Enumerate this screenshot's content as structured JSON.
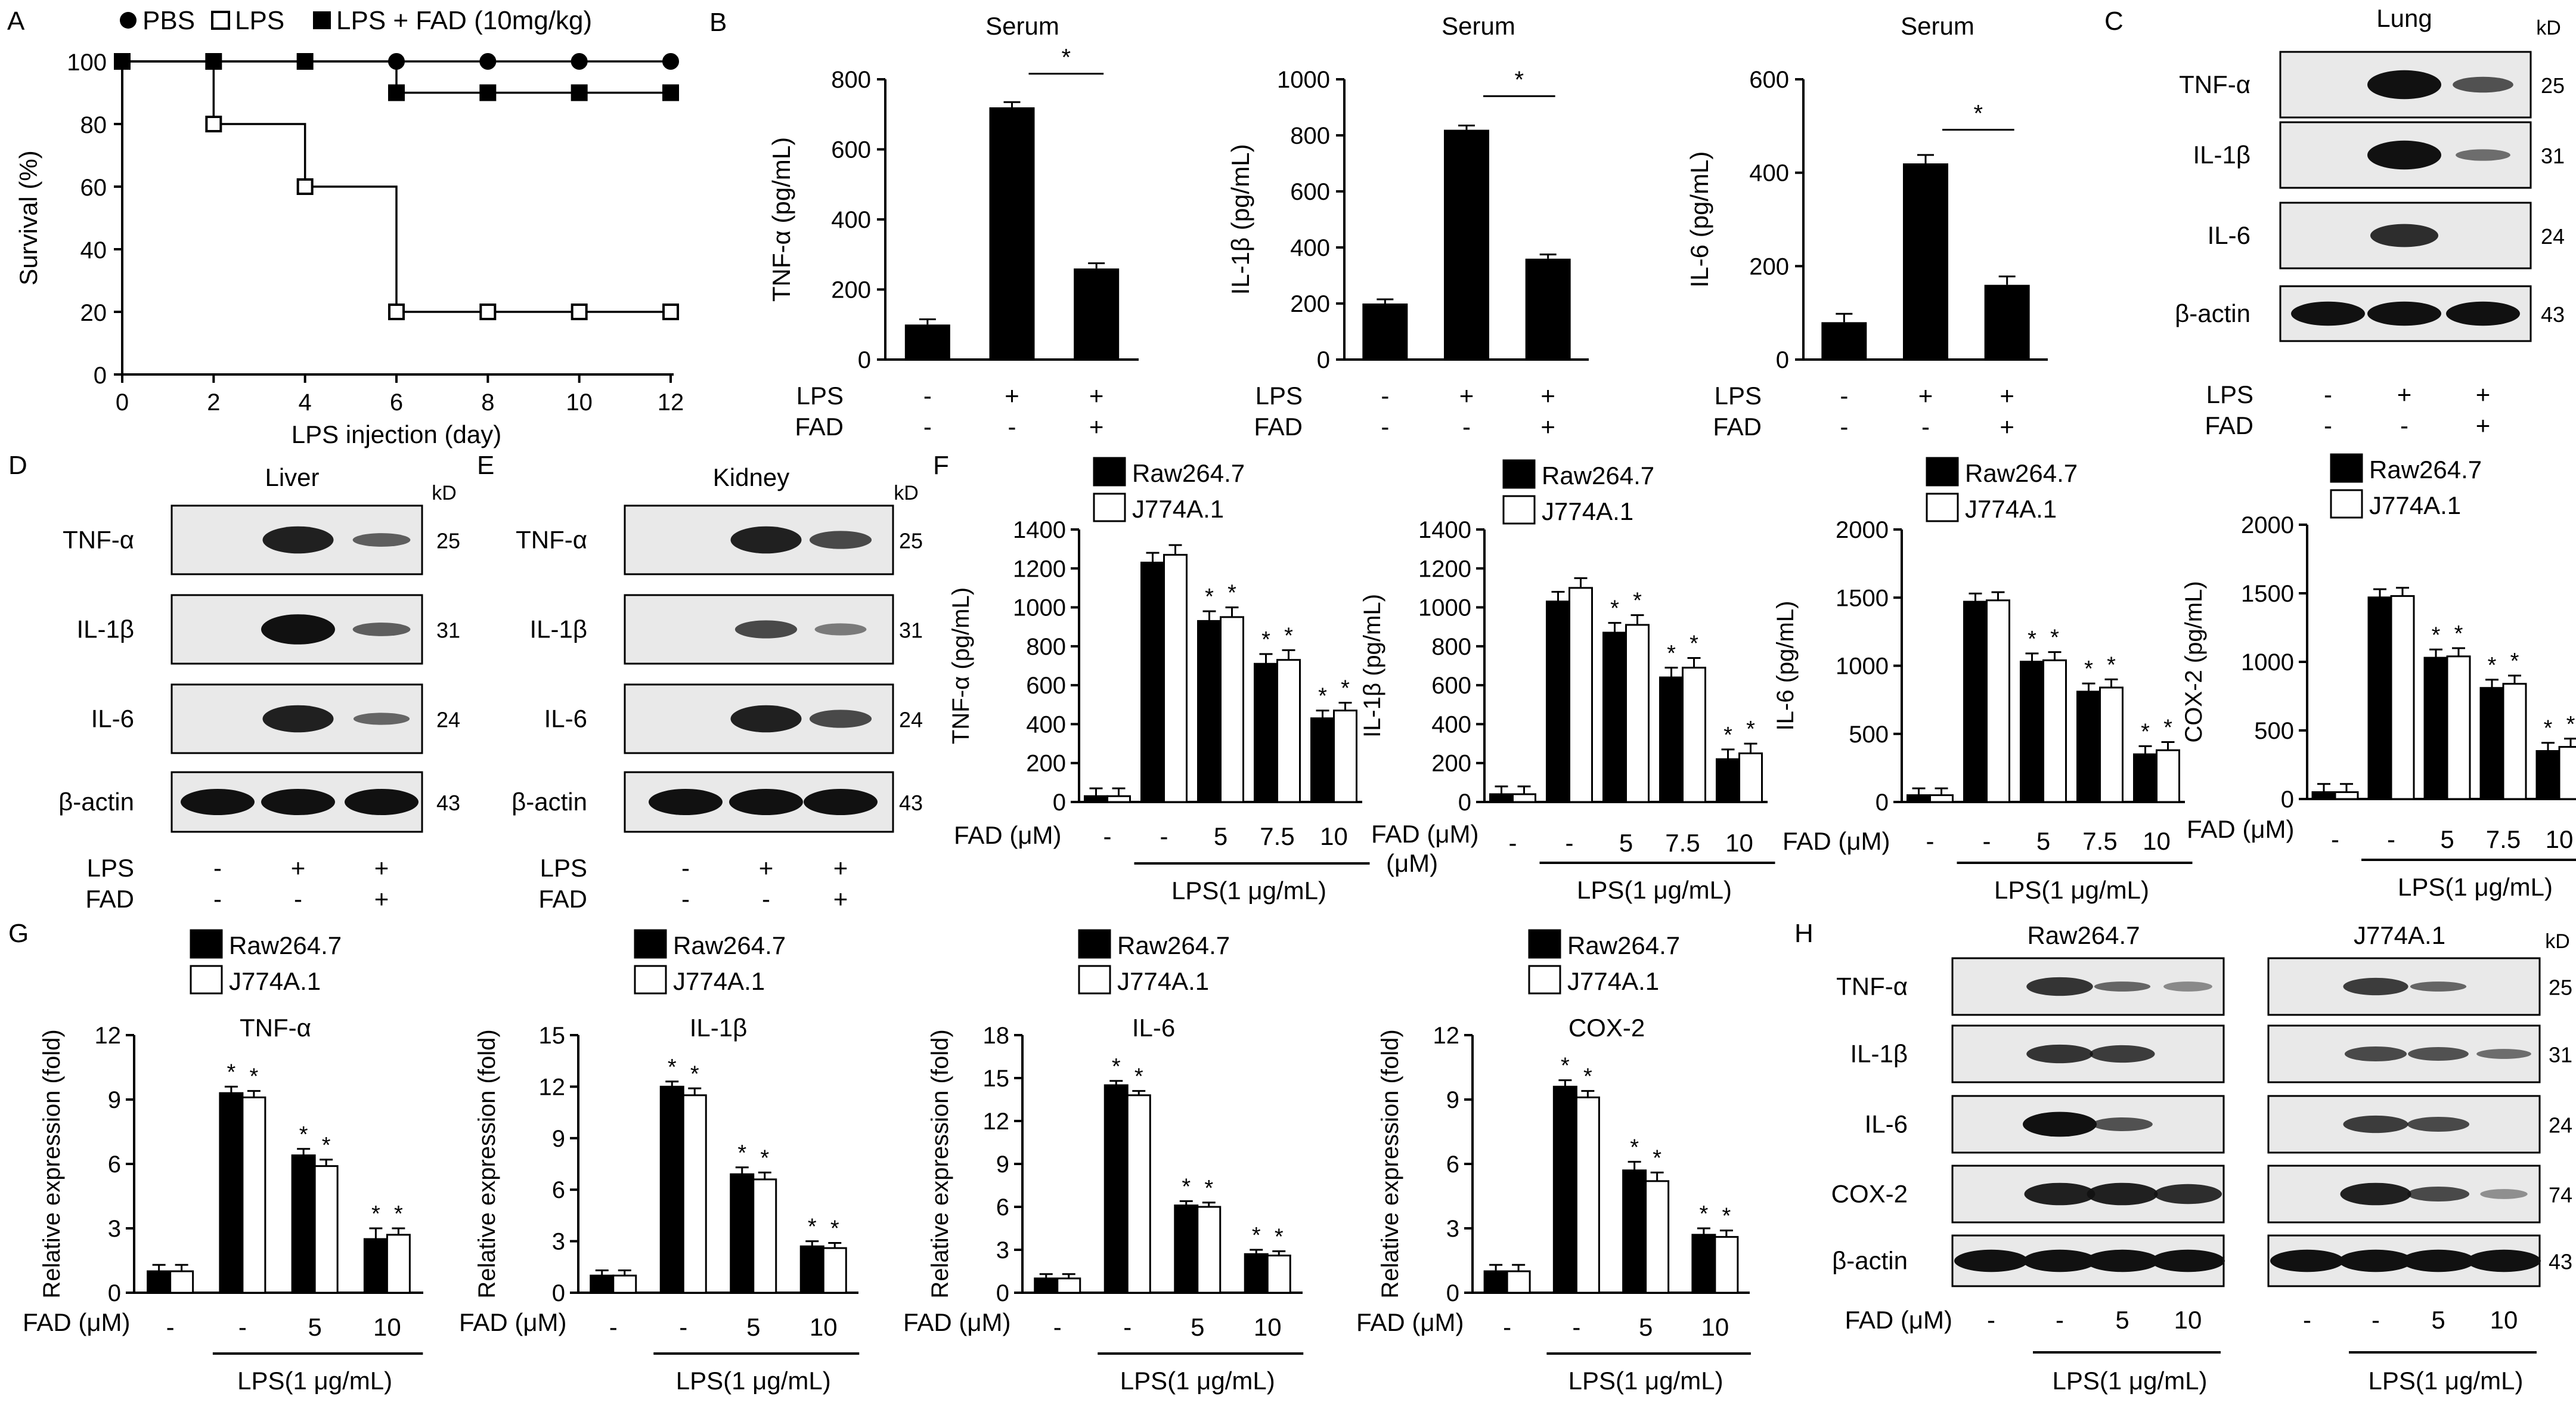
{
  "panel_letters": {
    "A": "A",
    "B": "B",
    "C": "C",
    "D": "D",
    "E": "E",
    "F": "F",
    "G": "G",
    "H": "H"
  },
  "colors": {
    "lps_fad": "#000000",
    "lps": "#ffffff",
    "pbs": "#000000",
    "blot_bg": "#e9e9e9"
  },
  "panel_a": {
    "legend": [
      {
        "marker": "circle-filled",
        "label": "PBS"
      },
      {
        "marker": "square-open",
        "label": "LPS"
      },
      {
        "marker": "square-filled",
        "label": "LPS + FAD (10mg/kg)"
      }
    ]
  },
  "panel_b_conditions": {
    "rows": [
      {
        "label": "LPS",
        "values": [
          "-",
          "+",
          "+"
        ]
      },
      {
        "label": "FAD",
        "values": [
          "-",
          "-",
          "+"
        ]
      }
    ]
  },
  "blot_units": "kD",
  "blots": {
    "C": {
      "title": "Lung",
      "unit": "kD",
      "rows": [
        {
          "label": "TNF-α",
          "kd": "25"
        },
        {
          "label": "IL-1β",
          "kd": "31"
        },
        {
          "label": "IL-6",
          "kd": "24"
        },
        {
          "label": "β-actin",
          "kd": "43"
        }
      ],
      "cond": [
        {
          "label": "LPS",
          "values": [
            "-",
            "+",
            "+"
          ]
        },
        {
          "label": "FAD",
          "values": [
            "-",
            "-",
            "+"
          ]
        }
      ]
    },
    "D": {
      "title": "Liver",
      "unit": "kD",
      "rows": [
        {
          "label": "TNF-α",
          "kd": "25"
        },
        {
          "label": "IL-1β",
          "kd": "31"
        },
        {
          "label": "IL-6",
          "kd": "24"
        },
        {
          "label": "β-actin",
          "kd": "43"
        }
      ],
      "cond": [
        {
          "label": "LPS",
          "values": [
            "-",
            "+",
            "+"
          ]
        },
        {
          "label": "FAD",
          "values": [
            "-",
            "-",
            "+"
          ]
        }
      ]
    },
    "E": {
      "title": "Kidney",
      "unit": "kD",
      "rows": [
        {
          "label": "TNF-α",
          "kd": "25"
        },
        {
          "label": "IL-1β",
          "kd": "31"
        },
        {
          "label": "IL-6",
          "kd": "24"
        },
        {
          "label": "β-actin",
          "kd": "43"
        }
      ],
      "cond": [
        {
          "label": "LPS",
          "values": [
            "-",
            "+",
            "+"
          ]
        },
        {
          "label": "FAD",
          "values": [
            "-",
            "-",
            "+"
          ]
        }
      ]
    },
    "H": {
      "titles": [
        "Raw264.7",
        "J774A.1"
      ],
      "unit": "kD",
      "rows": [
        {
          "label": "TNF-α",
          "kd": "25"
        },
        {
          "label": "IL-1β",
          "kd": "31"
        },
        {
          "label": "IL-6",
          "kd": "24"
        },
        {
          "label": "COX-2",
          "kd": "74"
        },
        {
          "label": "β-actin",
          "kd": "43"
        }
      ],
      "fad_label": "FAD (μM)",
      "fad_values": [
        "-",
        "-",
        "5",
        "10"
      ],
      "lps_label": "LPS(1 μg/mL)"
    }
  },
  "cell_legend": [
    "Raw264.7",
    "J774A.1"
  ],
  "chart_data": [
    {
      "id": "A",
      "type": "line",
      "title": "",
      "xlabel": "LPS injection (day)",
      "ylabel": "Survival  (%)",
      "xlim": [
        0,
        12
      ],
      "ylim": [
        0,
        100
      ],
      "xticks": [
        0,
        2,
        4,
        6,
        8,
        10,
        12
      ],
      "yticks": [
        0,
        20,
        40,
        60,
        80,
        100
      ],
      "step": true,
      "series": [
        {
          "name": "PBS",
          "marker": "circle-filled",
          "x": [
            0,
            2,
            4,
            6,
            8,
            10,
            12
          ],
          "y": [
            100,
            100,
            100,
            100,
            100,
            100,
            100
          ]
        },
        {
          "name": "LPS",
          "marker": "square-open",
          "x": [
            0,
            2,
            4,
            6,
            8,
            10,
            12
          ],
          "y": [
            100,
            80,
            60,
            20,
            20,
            20,
            20
          ]
        },
        {
          "name": "LPS + FAD (10mg/kg)",
          "marker": "square-filled",
          "x": [
            0,
            2,
            4,
            6,
            8,
            10,
            12
          ],
          "y": [
            100,
            100,
            100,
            90,
            90,
            90,
            90
          ]
        }
      ]
    },
    {
      "id": "B1",
      "type": "bar",
      "title": "Serum",
      "ylabel": "TNF-α  (pg/mL)",
      "ylim": [
        0,
        800
      ],
      "yticks": [
        0,
        200,
        400,
        600,
        800
      ],
      "categories": [
        "PBS",
        "LPS",
        "LPS+FAD"
      ],
      "values": [
        100,
        720,
        260
      ],
      "errors": [
        15,
        15,
        15
      ],
      "star": "*"
    },
    {
      "id": "B2",
      "type": "bar",
      "title": "Serum",
      "ylabel": "IL-1β  (pg/mL)",
      "ylim": [
        0,
        1000
      ],
      "yticks": [
        0,
        200,
        400,
        600,
        800,
        1000
      ],
      "categories": [
        "PBS",
        "LPS",
        "LPS+FAD"
      ],
      "values": [
        200,
        820,
        360
      ],
      "errors": [
        15,
        15,
        15
      ],
      "star": "*"
    },
    {
      "id": "B3",
      "type": "bar",
      "title": "Serum",
      "ylabel": "IL-6  (pg/mL)",
      "ylim": [
        0,
        600
      ],
      "yticks": [
        0,
        200,
        400,
        600
      ],
      "categories": [
        "PBS",
        "LPS",
        "LPS+FAD"
      ],
      "values": [
        80,
        420,
        160
      ],
      "errors": [
        18,
        18,
        18
      ],
      "star": "*"
    },
    {
      "id": "F1",
      "type": "bar",
      "ylabel": "TNF-α  (pg/mL)",
      "ylim": [
        0,
        1400
      ],
      "yticks": [
        0,
        200,
        400,
        600,
        800,
        1000,
        1200,
        1400
      ],
      "fad_label": "FAD (μM)",
      "categories": [
        "-",
        "-",
        "5",
        "7.5",
        "10"
      ],
      "lps_label": "LPS(1 μg/mL)",
      "series": [
        {
          "name": "Raw264.7",
          "values": [
            30,
            1230,
            930,
            710,
            430
          ],
          "errors": [
            40,
            50,
            50,
            50,
            40
          ],
          "stars": [
            "",
            "",
            "*",
            "*",
            "*"
          ]
        },
        {
          "name": "J774A.1",
          "values": [
            30,
            1270,
            950,
            730,
            470
          ],
          "errors": [
            40,
            50,
            50,
            50,
            40
          ],
          "stars": [
            "",
            "",
            "*",
            "*",
            "*"
          ]
        }
      ]
    },
    {
      "id": "F2",
      "type": "bar",
      "ylabel": "IL-1β  (pg/mL)",
      "ylim": [
        0,
        1400
      ],
      "yticks": [
        0,
        200,
        400,
        600,
        800,
        1000,
        1200,
        1400
      ],
      "fad_label": "FAD (μM)",
      "categories": [
        "-",
        "-",
        "5",
        "7.5",
        "10"
      ],
      "lps_label": "LPS(1 μg/mL)",
      "series": [
        {
          "name": "Raw264.7",
          "values": [
            40,
            1030,
            870,
            640,
            220
          ],
          "errors": [
            40,
            50,
            50,
            50,
            50
          ],
          "stars": [
            "",
            "",
            "*",
            "*",
            "*"
          ]
        },
        {
          "name": "J774A.1",
          "values": [
            40,
            1100,
            910,
            690,
            250
          ],
          "errors": [
            40,
            50,
            50,
            50,
            50
          ],
          "stars": [
            "",
            "",
            "*",
            "*",
            "*"
          ]
        }
      ]
    },
    {
      "id": "F3",
      "type": "bar",
      "ylabel": "IL-6  (pg/mL)",
      "ylim": [
        0,
        2000
      ],
      "yticks": [
        0,
        500,
        1000,
        1500,
        2000
      ],
      "fad_label": "FAD (μM)",
      "categories": [
        "-",
        "-",
        "5",
        "7.5",
        "10"
      ],
      "lps_label": "LPS(1 μg/mL)",
      "series": [
        {
          "name": "Raw264.7",
          "values": [
            50,
            1470,
            1030,
            810,
            350
          ],
          "errors": [
            50,
            60,
            60,
            60,
            60
          ],
          "stars": [
            "",
            "",
            "*",
            "*",
            "*"
          ]
        },
        {
          "name": "J774A.1",
          "values": [
            50,
            1480,
            1040,
            840,
            380
          ],
          "errors": [
            50,
            60,
            60,
            60,
            60
          ],
          "stars": [
            "",
            "",
            "*",
            "*",
            "*"
          ]
        }
      ]
    },
    {
      "id": "F4",
      "type": "bar",
      "ylabel": "COX-2  (pg/mL)",
      "ylim": [
        0,
        2000
      ],
      "yticks": [
        0,
        500,
        1000,
        1500,
        2000
      ],
      "fad_label": "FAD (μM)",
      "categories": [
        "-",
        "-",
        "5",
        "7.5",
        "10"
      ],
      "lps_label": "LPS(1 μg/mL)",
      "series": [
        {
          "name": "Raw264.7",
          "values": [
            50,
            1470,
            1030,
            810,
            350
          ],
          "errors": [
            60,
            60,
            60,
            60,
            60
          ],
          "stars": [
            "",
            "",
            "*",
            "*",
            "*"
          ]
        },
        {
          "name": "J774A.1",
          "values": [
            50,
            1480,
            1040,
            840,
            380
          ],
          "errors": [
            60,
            60,
            60,
            60,
            60
          ],
          "stars": [
            "",
            "",
            "*",
            "*",
            "*"
          ]
        }
      ]
    },
    {
      "id": "G1",
      "type": "bar",
      "title": "TNF-α",
      "ylabel": "Relative  expression (fold)",
      "ylim": [
        0,
        12
      ],
      "yticks": [
        0,
        3,
        6,
        9,
        12
      ],
      "fad_label": "FAD (μM)",
      "categories": [
        "-",
        "-",
        "5",
        "10"
      ],
      "lps_label": "LPS(1 μg/mL)",
      "series": [
        {
          "name": "Raw264.7",
          "values": [
            1,
            9.3,
            6.4,
            2.5
          ],
          "errors": [
            0.3,
            0.3,
            0.3,
            0.5
          ],
          "stars": [
            "",
            "*",
            "*",
            "*"
          ]
        },
        {
          "name": "J774A.1",
          "values": [
            1,
            9.1,
            5.9,
            2.7
          ],
          "errors": [
            0.3,
            0.3,
            0.3,
            0.3
          ],
          "stars": [
            "",
            "*",
            "*",
            "*"
          ]
        }
      ]
    },
    {
      "id": "G2",
      "type": "bar",
      "title": "IL-1β",
      "ylabel": "Relative  expression (fold)",
      "ylim": [
        0,
        15
      ],
      "yticks": [
        0,
        3,
        6,
        9,
        12,
        15
      ],
      "fad_label": "FAD (μM)",
      "categories": [
        "-",
        "-",
        "5",
        "10"
      ],
      "lps_label": "LPS(1 μg/mL)",
      "series": [
        {
          "name": "Raw264.7",
          "values": [
            1,
            12,
            6.9,
            2.7
          ],
          "errors": [
            0.3,
            0.3,
            0.4,
            0.3
          ],
          "stars": [
            "",
            "*",
            "*",
            "*"
          ]
        },
        {
          "name": "J774A.1",
          "values": [
            1,
            11.5,
            6.6,
            2.6
          ],
          "errors": [
            0.3,
            0.4,
            0.4,
            0.3
          ],
          "stars": [
            "",
            "*",
            "*",
            "*"
          ]
        }
      ]
    },
    {
      "id": "G3",
      "type": "bar",
      "title": "IL-6",
      "ylabel": "Relative  expression (fold)",
      "ylim": [
        0,
        18
      ],
      "yticks": [
        0,
        3,
        6,
        9,
        12,
        15,
        18
      ],
      "fad_label": "FAD (μM)",
      "categories": [
        "-",
        "-",
        "5",
        "10"
      ],
      "lps_label": "LPS(1 μg/mL)",
      "series": [
        {
          "name": "Raw264.7",
          "values": [
            1,
            14.5,
            6.1,
            2.7
          ],
          "errors": [
            0.3,
            0.3,
            0.3,
            0.3
          ],
          "stars": [
            "",
            "*",
            "*",
            "*"
          ]
        },
        {
          "name": "J774A.1",
          "values": [
            1,
            13.8,
            6,
            2.6
          ],
          "errors": [
            0.3,
            0.3,
            0.3,
            0.3
          ],
          "stars": [
            "",
            "*",
            "*",
            "*"
          ]
        }
      ]
    },
    {
      "id": "G4",
      "type": "bar",
      "title": "COX-2",
      "ylabel": "Relative  expression (fold)",
      "ylim": [
        0,
        12
      ],
      "yticks": [
        0,
        3,
        6,
        9,
        12
      ],
      "fad_label": "FAD (μM)",
      "categories": [
        "-",
        "-",
        "5",
        "10"
      ],
      "lps_label": "LPS(1 μg/mL)",
      "series": [
        {
          "name": "Raw264.7",
          "values": [
            1,
            9.6,
            5.7,
            2.7
          ],
          "errors": [
            0.3,
            0.3,
            0.4,
            0.3
          ],
          "stars": [
            "",
            "*",
            "*",
            "*"
          ]
        },
        {
          "name": "J774A.1",
          "values": [
            1,
            9.1,
            5.2,
            2.6
          ],
          "errors": [
            0.3,
            0.3,
            0.4,
            0.3
          ],
          "stars": [
            "",
            "*",
            "*",
            "*"
          ]
        }
      ]
    }
  ]
}
